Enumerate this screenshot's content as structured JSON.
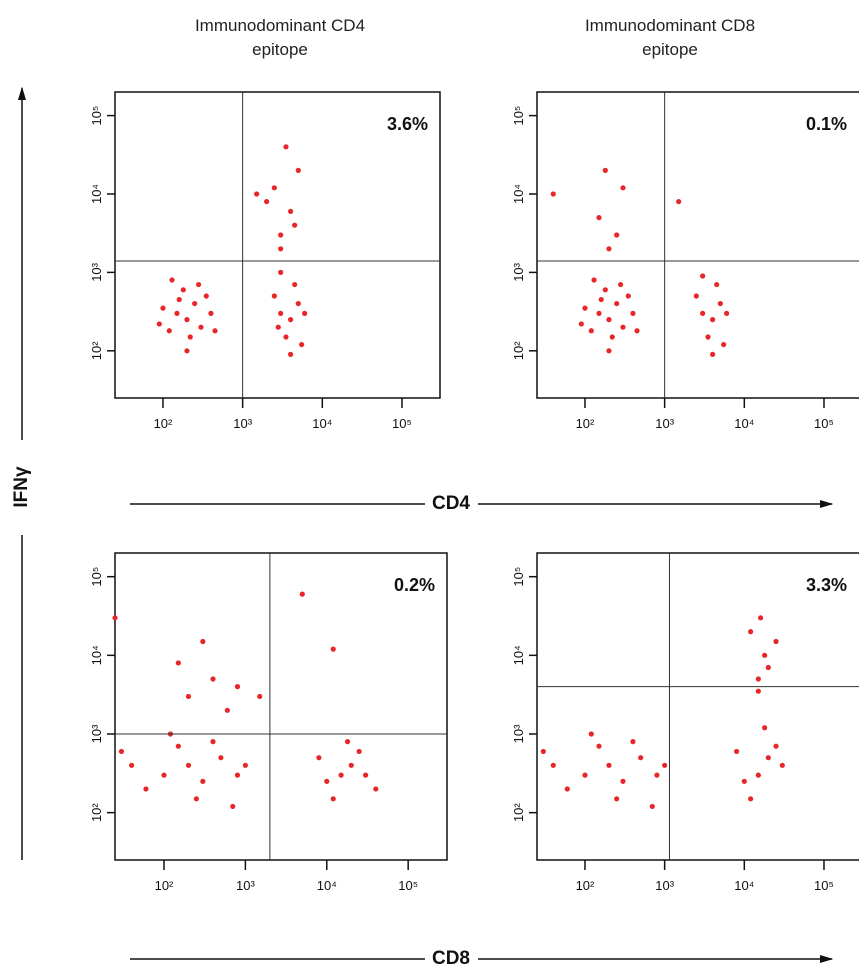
{
  "figure": {
    "column_titles": [
      "Immunodominant CD4 epitope",
      "Immunodominant CD8 epitope"
    ],
    "ylabel": "IFNγ",
    "row_xlabels": [
      "CD4",
      "CD8"
    ]
  },
  "chart_data": [
    {
      "type": "scatter",
      "color": "#e8262a",
      "log_x": true,
      "log_y": true,
      "annotation": "3.6%",
      "gates": {
        "x": 1000,
        "y": 1400
      },
      "xlim": [
        25,
        300000
      ],
      "ylim": [
        25,
        200000
      ],
      "xticks": [
        {
          "value": 100,
          "label": "10²"
        },
        {
          "value": 1000,
          "label": "10³"
        },
        {
          "value": 10000,
          "label": "10⁴"
        },
        {
          "value": 100000,
          "label": "10⁵"
        }
      ],
      "yticks": [
        {
          "value": 100,
          "label": "10²"
        },
        {
          "value": 1000,
          "label": "10³"
        },
        {
          "value": 10000,
          "label": "10⁴"
        },
        {
          "value": 100000,
          "label": "10⁵"
        }
      ],
      "x": [
        150,
        200,
        250,
        120,
        300,
        180,
        100,
        400,
        220,
        160,
        280,
        90,
        350,
        200,
        130,
        450,
        3000,
        4000,
        5000,
        3500,
        6000,
        2500,
        4500,
        3000,
        5500,
        4000,
        2800,
        3000,
        4000,
        2500,
        5000,
        3500,
        3000,
        4500,
        2000,
        1500
      ],
      "values": [
        300,
        250,
        400,
        180,
        200,
        600,
        350,
        300,
        150,
        450,
        700,
        220,
        500,
        100,
        800,
        180,
        300,
        250,
        400,
        150,
        300,
        500,
        700,
        1000,
        120,
        90,
        200,
        3000,
        6000,
        12000,
        20000,
        40000,
        2000,
        4000,
        8000,
        10000
      ]
    },
    {
      "type": "scatter",
      "color": "#e8262a",
      "log_x": true,
      "log_y": true,
      "annotation": "0.1%",
      "gates": {
        "x": 1000,
        "y": 1400
      },
      "xlim": [
        25,
        300000
      ],
      "ylim": [
        25,
        200000
      ],
      "xticks": [
        {
          "value": 100,
          "label": "10²"
        },
        {
          "value": 1000,
          "label": "10³"
        },
        {
          "value": 10000,
          "label": "10⁴"
        },
        {
          "value": 100000,
          "label": "10⁵"
        }
      ],
      "yticks": [
        {
          "value": 100,
          "label": "10²"
        },
        {
          "value": 1000,
          "label": "10³"
        },
        {
          "value": 10000,
          "label": "10⁴"
        },
        {
          "value": 100000,
          "label": "10⁵"
        }
      ],
      "x": [
        150,
        200,
        250,
        120,
        300,
        180,
        100,
        400,
        220,
        160,
        280,
        90,
        350,
        200,
        130,
        450,
        3000,
        4000,
        5000,
        3500,
        6000,
        2500,
        4500,
        3000,
        5500,
        4000,
        200,
        250,
        150,
        300,
        180,
        40,
        1500
      ],
      "values": [
        300,
        250,
        400,
        180,
        200,
        600,
        350,
        300,
        150,
        450,
        700,
        220,
        500,
        100,
        800,
        180,
        300,
        250,
        400,
        150,
        300,
        500,
        700,
        900,
        120,
        90,
        2000,
        3000,
        5000,
        12000,
        20000,
        10000,
        8000
      ]
    },
    {
      "type": "scatter",
      "color": "#e8262a",
      "log_x": true,
      "log_y": true,
      "annotation": "0.2%",
      "gates": {
        "x": 2000,
        "y": 1000
      },
      "xlim": [
        25,
        300000
      ],
      "ylim": [
        25,
        200000
      ],
      "xticks": [
        {
          "value": 100,
          "label": "10²"
        },
        {
          "value": 1000,
          "label": "10³"
        },
        {
          "value": 10000,
          "label": "10⁴"
        },
        {
          "value": 100000,
          "label": "10⁵"
        }
      ],
      "yticks": [
        {
          "value": 100,
          "label": "10²"
        },
        {
          "value": 1000,
          "label": "10³"
        },
        {
          "value": 10000,
          "label": "10⁴"
        },
        {
          "value": 100000,
          "label": "10⁵"
        }
      ],
      "x": [
        100,
        200,
        60,
        300,
        500,
        150,
        40,
        800,
        250,
        120,
        400,
        700,
        30,
        1000,
        15000,
        20000,
        10000,
        25000,
        12000,
        30000,
        18000,
        8000,
        40000,
        200,
        400,
        600,
        150,
        800,
        300,
        1500,
        12000,
        5000,
        25
      ],
      "values": [
        300,
        400,
        200,
        250,
        500,
        700,
        400,
        300,
        150,
        1000,
        800,
        120,
        600,
        400,
        300,
        400,
        250,
        600,
        150,
        300,
        800,
        500,
        200,
        3000,
        5000,
        2000,
        8000,
        4000,
        15000,
        3000,
        12000,
        60000,
        30000
      ]
    },
    {
      "type": "scatter",
      "color": "#e8262a",
      "log_x": true,
      "log_y": true,
      "annotation": "3.3%",
      "gates": {
        "x": 1150,
        "y": 4000
      },
      "xlim": [
        25,
        300000
      ],
      "ylim": [
        25,
        200000
      ],
      "xticks": [
        {
          "value": 100,
          "label": "10²"
        },
        {
          "value": 1000,
          "label": "10³"
        },
        {
          "value": 10000,
          "label": "10⁴"
        },
        {
          "value": 100000,
          "label": "10⁵"
        }
      ],
      "yticks": [
        {
          "value": 100,
          "label": "10²"
        },
        {
          "value": 1000,
          "label": "10³"
        },
        {
          "value": 10000,
          "label": "10⁴"
        },
        {
          "value": 100000,
          "label": "10⁵"
        }
      ],
      "x": [
        100,
        200,
        60,
        300,
        500,
        150,
        40,
        800,
        250,
        120,
        400,
        700,
        30,
        1000,
        15000,
        20000,
        10000,
        25000,
        12000,
        30000,
        18000,
        8000,
        15000,
        18000,
        12000,
        20000,
        15000,
        25000,
        16000
      ],
      "values": [
        300,
        400,
        200,
        250,
        500,
        700,
        400,
        300,
        150,
        1000,
        800,
        120,
        600,
        400,
        300,
        500,
        250,
        700,
        150,
        400,
        1200,
        600,
        5000,
        10000,
        20000,
        7000,
        3500,
        15000,
        30000
      ]
    }
  ]
}
